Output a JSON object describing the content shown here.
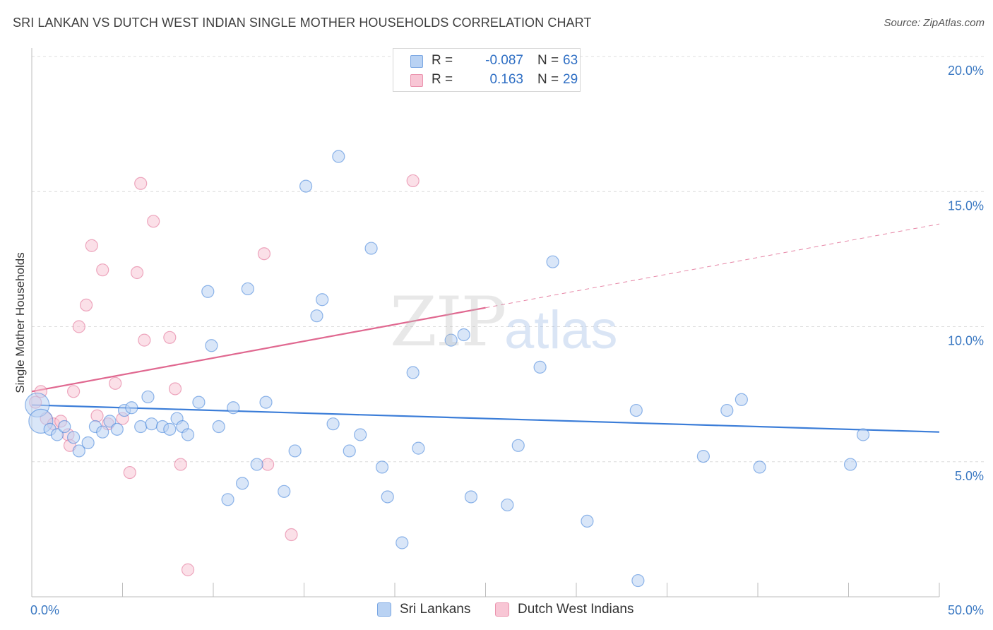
{
  "title": "SRI LANKAN VS DUTCH WEST INDIAN SINGLE MOTHER HOUSEHOLDS CORRELATION CHART",
  "source": "Source: ZipAtlas.com",
  "watermark": {
    "zip": "ZIP",
    "atlas": "atlas"
  },
  "legend": {
    "rows": [
      {
        "r_label": "R =",
        "r_value": "-0.087",
        "n_label": "N =",
        "n_value": "63",
        "fill": "#b9d2f3",
        "stroke": "#7aa7e3"
      },
      {
        "r_label": "R =",
        "r_value": "0.163",
        "n_label": "N =",
        "n_value": "29",
        "fill": "#f8c6d5",
        "stroke": "#eb93ae"
      }
    ]
  },
  "bottom_legend": [
    {
      "label": "Sri Lankans",
      "fill": "#b9d2f3",
      "stroke": "#7aa7e3"
    },
    {
      "label": "Dutch West Indians",
      "fill": "#f8c6d5",
      "stroke": "#eb93ae"
    }
  ],
  "chart_data": {
    "type": "scatter",
    "ylabel": "Single Mother Households",
    "xlim": [
      0,
      50
    ],
    "ylim": [
      0,
      20
    ],
    "x_tick_labels": [
      {
        "value": 0,
        "label": "0.0%"
      },
      {
        "value": 50,
        "label": "50.0%"
      }
    ],
    "y_ticks": [
      {
        "value": 5,
        "label": "5.0%"
      },
      {
        "value": 10,
        "label": "10.0%"
      },
      {
        "value": 15,
        "label": "15.0%"
      },
      {
        "value": 20,
        "label": "20.0%"
      }
    ],
    "grid": "horizontal dashed",
    "series": [
      {
        "name": "Sri Lankans",
        "color": "#3b7dd8",
        "fill": "#b9d2f3",
        "trend": {
          "x": [
            0,
            50
          ],
          "y": [
            7.1,
            6.1
          ],
          "dashed_from": null
        },
        "points": [
          {
            "x": 0.3,
            "y": 7.1,
            "big": true
          },
          {
            "x": 0.5,
            "y": 6.5,
            "big": true
          },
          {
            "x": 1.0,
            "y": 6.2
          },
          {
            "x": 1.4,
            "y": 6.0
          },
          {
            "x": 1.8,
            "y": 6.3
          },
          {
            "x": 2.3,
            "y": 5.9
          },
          {
            "x": 2.6,
            "y": 5.4
          },
          {
            "x": 3.1,
            "y": 5.7
          },
          {
            "x": 3.5,
            "y": 6.3
          },
          {
            "x": 3.9,
            "y": 6.1
          },
          {
            "x": 4.3,
            "y": 6.5
          },
          {
            "x": 4.7,
            "y": 6.2
          },
          {
            "x": 5.1,
            "y": 6.9
          },
          {
            "x": 5.5,
            "y": 7.0
          },
          {
            "x": 6.0,
            "y": 6.3
          },
          {
            "x": 6.4,
            "y": 7.4
          },
          {
            "x": 6.6,
            "y": 6.4
          },
          {
            "x": 7.2,
            "y": 6.3
          },
          {
            "x": 7.6,
            "y": 6.2
          },
          {
            "x": 8.0,
            "y": 6.6
          },
          {
            "x": 8.3,
            "y": 6.3
          },
          {
            "x": 8.6,
            "y": 6.0
          },
          {
            "x": 9.2,
            "y": 7.2
          },
          {
            "x": 9.7,
            "y": 11.3
          },
          {
            "x": 9.9,
            "y": 9.3
          },
          {
            "x": 10.3,
            "y": 6.3
          },
          {
            "x": 10.8,
            "y": 3.6
          },
          {
            "x": 11.1,
            "y": 7.0
          },
          {
            "x": 11.6,
            "y": 4.2
          },
          {
            "x": 11.9,
            "y": 11.4
          },
          {
            "x": 12.4,
            "y": 4.9
          },
          {
            "x": 12.9,
            "y": 7.2
          },
          {
            "x": 13.9,
            "y": 3.9
          },
          {
            "x": 14.5,
            "y": 5.4
          },
          {
            "x": 15.1,
            "y": 15.2
          },
          {
            "x": 15.7,
            "y": 10.4
          },
          {
            "x": 16.0,
            "y": 11.0
          },
          {
            "x": 16.6,
            "y": 6.4
          },
          {
            "x": 16.9,
            "y": 16.3
          },
          {
            "x": 17.5,
            "y": 5.4
          },
          {
            "x": 18.1,
            "y": 6.0
          },
          {
            "x": 18.7,
            "y": 12.9
          },
          {
            "x": 19.3,
            "y": 4.8
          },
          {
            "x": 19.6,
            "y": 3.7
          },
          {
            "x": 20.4,
            "y": 2.0
          },
          {
            "x": 21.0,
            "y": 8.3
          },
          {
            "x": 21.3,
            "y": 5.5
          },
          {
            "x": 23.1,
            "y": 9.5
          },
          {
            "x": 23.8,
            "y": 9.7
          },
          {
            "x": 24.2,
            "y": 3.7
          },
          {
            "x": 26.2,
            "y": 3.4
          },
          {
            "x": 26.8,
            "y": 5.6
          },
          {
            "x": 28.0,
            "y": 8.5
          },
          {
            "x": 28.7,
            "y": 12.4
          },
          {
            "x": 30.6,
            "y": 2.8
          },
          {
            "x": 33.3,
            "y": 6.9
          },
          {
            "x": 33.4,
            "y": 0.6
          },
          {
            "x": 37.0,
            "y": 5.2
          },
          {
            "x": 38.3,
            "y": 6.9
          },
          {
            "x": 39.1,
            "y": 7.3
          },
          {
            "x": 40.1,
            "y": 4.8
          },
          {
            "x": 45.1,
            "y": 4.9
          },
          {
            "x": 45.8,
            "y": 6.0
          }
        ]
      },
      {
        "name": "Dutch West Indians",
        "color": "#e06890",
        "fill": "#f8c6d5",
        "trend": {
          "x": [
            0,
            50
          ],
          "y": [
            7.6,
            13.8
          ],
          "dashed_from": 25
        },
        "points": [
          {
            "x": 0.2,
            "y": 7.2
          },
          {
            "x": 0.5,
            "y": 7.6
          },
          {
            "x": 0.8,
            "y": 6.6
          },
          {
            "x": 1.2,
            "y": 6.4
          },
          {
            "x": 1.6,
            "y": 6.5
          },
          {
            "x": 2.0,
            "y": 6.0
          },
          {
            "x": 2.1,
            "y": 5.6
          },
          {
            "x": 2.3,
            "y": 7.6
          },
          {
            "x": 2.6,
            "y": 10.0
          },
          {
            "x": 3.0,
            "y": 10.8
          },
          {
            "x": 3.3,
            "y": 13.0
          },
          {
            "x": 3.6,
            "y": 6.7
          },
          {
            "x": 3.9,
            "y": 12.1
          },
          {
            "x": 4.2,
            "y": 6.4
          },
          {
            "x": 4.6,
            "y": 7.9
          },
          {
            "x": 5.0,
            "y": 6.6
          },
          {
            "x": 5.4,
            "y": 4.6
          },
          {
            "x": 5.8,
            "y": 12.0
          },
          {
            "x": 6.0,
            "y": 15.3
          },
          {
            "x": 6.2,
            "y": 9.5
          },
          {
            "x": 6.7,
            "y": 13.9
          },
          {
            "x": 7.6,
            "y": 9.6
          },
          {
            "x": 7.9,
            "y": 7.7
          },
          {
            "x": 8.2,
            "y": 4.9
          },
          {
            "x": 8.6,
            "y": 1.0
          },
          {
            "x": 12.8,
            "y": 12.7
          },
          {
            "x": 13.0,
            "y": 4.9
          },
          {
            "x": 14.3,
            "y": 2.3
          },
          {
            "x": 21.0,
            "y": 15.4
          }
        ]
      }
    ]
  }
}
